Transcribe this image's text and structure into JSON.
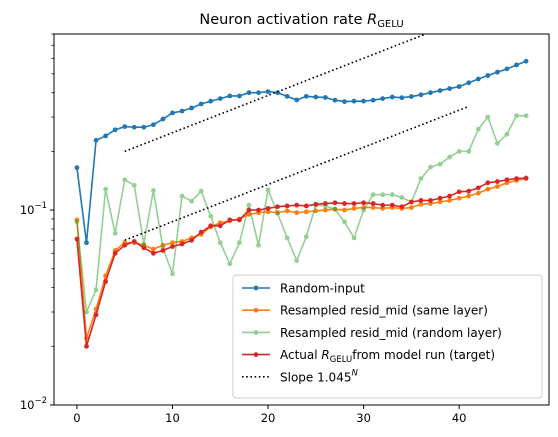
{
  "chart_data": {
    "type": "line",
    "title": {
      "main": "Neuron activation rate ",
      "italic": "R",
      "sub": "GELU"
    },
    "xlabel": "",
    "ylabel": "",
    "yscale": "log",
    "xlim": [
      -2.4,
      49.4
    ],
    "ylim": [
      0.01,
      0.8
    ],
    "xticks": [
      0,
      10,
      20,
      30,
      40
    ],
    "xtick_labels": [
      "0",
      "10",
      "20",
      "30",
      "40"
    ],
    "yticks": [
      0.01,
      0.1
    ],
    "ytick_labels": [
      {
        "base": "10",
        "exp": "−2"
      },
      {
        "base": "10",
        "exp": "−1"
      }
    ],
    "grid": false,
    "legend_position": "lower right",
    "series": [
      {
        "name": "Random-input",
        "color": "#1f77b4",
        "alpha": 1,
        "x": [
          0,
          1,
          2,
          3,
          4,
          5,
          6,
          7,
          8,
          9,
          10,
          11,
          12,
          13,
          14,
          15,
          16,
          17,
          18,
          19,
          20,
          21,
          22,
          23,
          24,
          25,
          26,
          27,
          28,
          29,
          30,
          31,
          32,
          33,
          34,
          35,
          36,
          37,
          38,
          39,
          40,
          41,
          42,
          43,
          44,
          45,
          46,
          47
        ],
        "values": [
          0.165,
          0.068,
          0.228,
          0.24,
          0.258,
          0.268,
          0.266,
          0.266,
          0.274,
          0.293,
          0.315,
          0.322,
          0.334,
          0.35,
          0.362,
          0.373,
          0.385,
          0.385,
          0.4,
          0.4,
          0.405,
          0.4,
          0.383,
          0.367,
          0.383,
          0.38,
          0.378,
          0.366,
          0.36,
          0.362,
          0.362,
          0.366,
          0.373,
          0.38,
          0.377,
          0.382,
          0.39,
          0.4,
          0.41,
          0.42,
          0.43,
          0.45,
          0.47,
          0.49,
          0.51,
          0.53,
          0.555,
          0.58
        ]
      },
      {
        "name": "Resampled resid_mid (same layer)",
        "color": "#ff7f0e",
        "alpha": 1,
        "x": [
          0,
          1,
          2,
          3,
          4,
          5,
          6,
          7,
          8,
          9,
          10,
          11,
          12,
          13,
          14,
          15,
          16,
          17,
          18,
          19,
          20,
          21,
          22,
          23,
          24,
          25,
          26,
          27,
          28,
          29,
          30,
          31,
          32,
          33,
          34,
          35,
          36,
          37,
          38,
          39,
          40,
          41,
          42,
          43,
          44,
          45,
          46,
          47
        ],
        "values": [
          0.089,
          0.022,
          0.031,
          0.046,
          0.062,
          0.068,
          0.068,
          0.066,
          0.063,
          0.066,
          0.068,
          0.069,
          0.072,
          0.075,
          0.082,
          0.086,
          0.088,
          0.09,
          0.095,
          0.097,
          0.098,
          0.097,
          0.099,
          0.097,
          0.098,
          0.099,
          0.1,
          0.101,
          0.1,
          0.102,
          0.103,
          0.103,
          0.102,
          0.103,
          0.102,
          0.103,
          0.107,
          0.108,
          0.11,
          0.112,
          0.115,
          0.118,
          0.122,
          0.128,
          0.132,
          0.138,
          0.142,
          0.145
        ]
      },
      {
        "name": "Resampled resid_mid (random layer)",
        "color": "#2ca02c",
        "alpha": 0.5,
        "x": [
          0,
          1,
          2,
          3,
          4,
          5,
          6,
          7,
          8,
          9,
          10,
          11,
          12,
          13,
          14,
          15,
          16,
          17,
          18,
          19,
          20,
          21,
          22,
          23,
          24,
          25,
          26,
          27,
          28,
          29,
          30,
          31,
          32,
          33,
          34,
          35,
          36,
          37,
          38,
          39,
          40,
          41,
          42,
          43,
          44,
          45,
          46,
          47
        ],
        "values": [
          0.087,
          0.03,
          0.039,
          0.128,
          0.076,
          0.143,
          0.134,
          0.067,
          0.126,
          0.064,
          0.047,
          0.118,
          0.111,
          0.125,
          0.093,
          0.068,
          0.053,
          0.068,
          0.106,
          0.066,
          0.127,
          0.096,
          0.072,
          0.055,
          0.073,
          0.106,
          0.105,
          0.101,
          0.087,
          0.072,
          0.1,
          0.12,
          0.12,
          0.12,
          0.116,
          0.11,
          0.145,
          0.166,
          0.172,
          0.187,
          0.2,
          0.2,
          0.26,
          0.3,
          0.22,
          0.245,
          0.305,
          0.305
        ]
      },
      {
        "name": "Actual R_GELU from model run (target)",
        "name_parts": {
          "pre": "Actual ",
          "italic": "R",
          "sub": "GELU",
          "post": "from model run (target)"
        },
        "color": "#d62728",
        "alpha": 1,
        "x": [
          0,
          1,
          2,
          3,
          4,
          5,
          6,
          7,
          8,
          9,
          10,
          11,
          12,
          13,
          14,
          15,
          16,
          17,
          18,
          19,
          20,
          21,
          22,
          23,
          24,
          25,
          26,
          27,
          28,
          29,
          30,
          31,
          32,
          33,
          34,
          35,
          36,
          37,
          38,
          39,
          40,
          41,
          42,
          43,
          44,
          45,
          46,
          47
        ],
        "values": [
          0.071,
          0.02,
          0.029,
          0.043,
          0.06,
          0.066,
          0.069,
          0.064,
          0.06,
          0.062,
          0.065,
          0.067,
          0.07,
          0.077,
          0.083,
          0.083,
          0.089,
          0.089,
          0.1,
          0.1,
          0.102,
          0.104,
          0.105,
          0.106,
          0.105,
          0.107,
          0.108,
          0.109,
          0.108,
          0.108,
          0.109,
          0.108,
          0.106,
          0.106,
          0.104,
          0.11,
          0.112,
          0.112,
          0.115,
          0.118,
          0.124,
          0.125,
          0.13,
          0.138,
          0.14,
          0.143,
          0.145,
          0.146
        ]
      },
      {
        "name": "Slope 1.045^N",
        "name_parts": {
          "pre": "Slope 1.045",
          "sup": "N"
        },
        "color": "#000000",
        "style": "dotted",
        "segments": [
          {
            "x": [
              5,
              36.5
            ],
            "values": [
              0.2,
              0.8
            ]
          },
          {
            "x": [
              5,
              41
            ],
            "values": [
              0.07,
              0.34
            ]
          }
        ]
      }
    ]
  }
}
